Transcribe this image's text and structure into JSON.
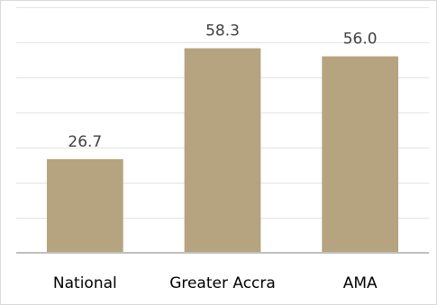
{
  "chart_data": {
    "type": "bar",
    "categories": [
      "National",
      "Greater Accra",
      "AMA"
    ],
    "values": [
      26.7,
      58.3,
      56.0
    ],
    "data_labels": [
      "26.7",
      "58.3",
      "56.0"
    ],
    "title": "",
    "xlabel": "",
    "ylabel": "",
    "ylim": [
      0,
      70
    ],
    "grid": true,
    "legend": "none",
    "colors": {
      "bar": "#b5a47f",
      "grid": "#e4e4e4",
      "axis": "#bfbfbf",
      "text": "#404040"
    }
  }
}
